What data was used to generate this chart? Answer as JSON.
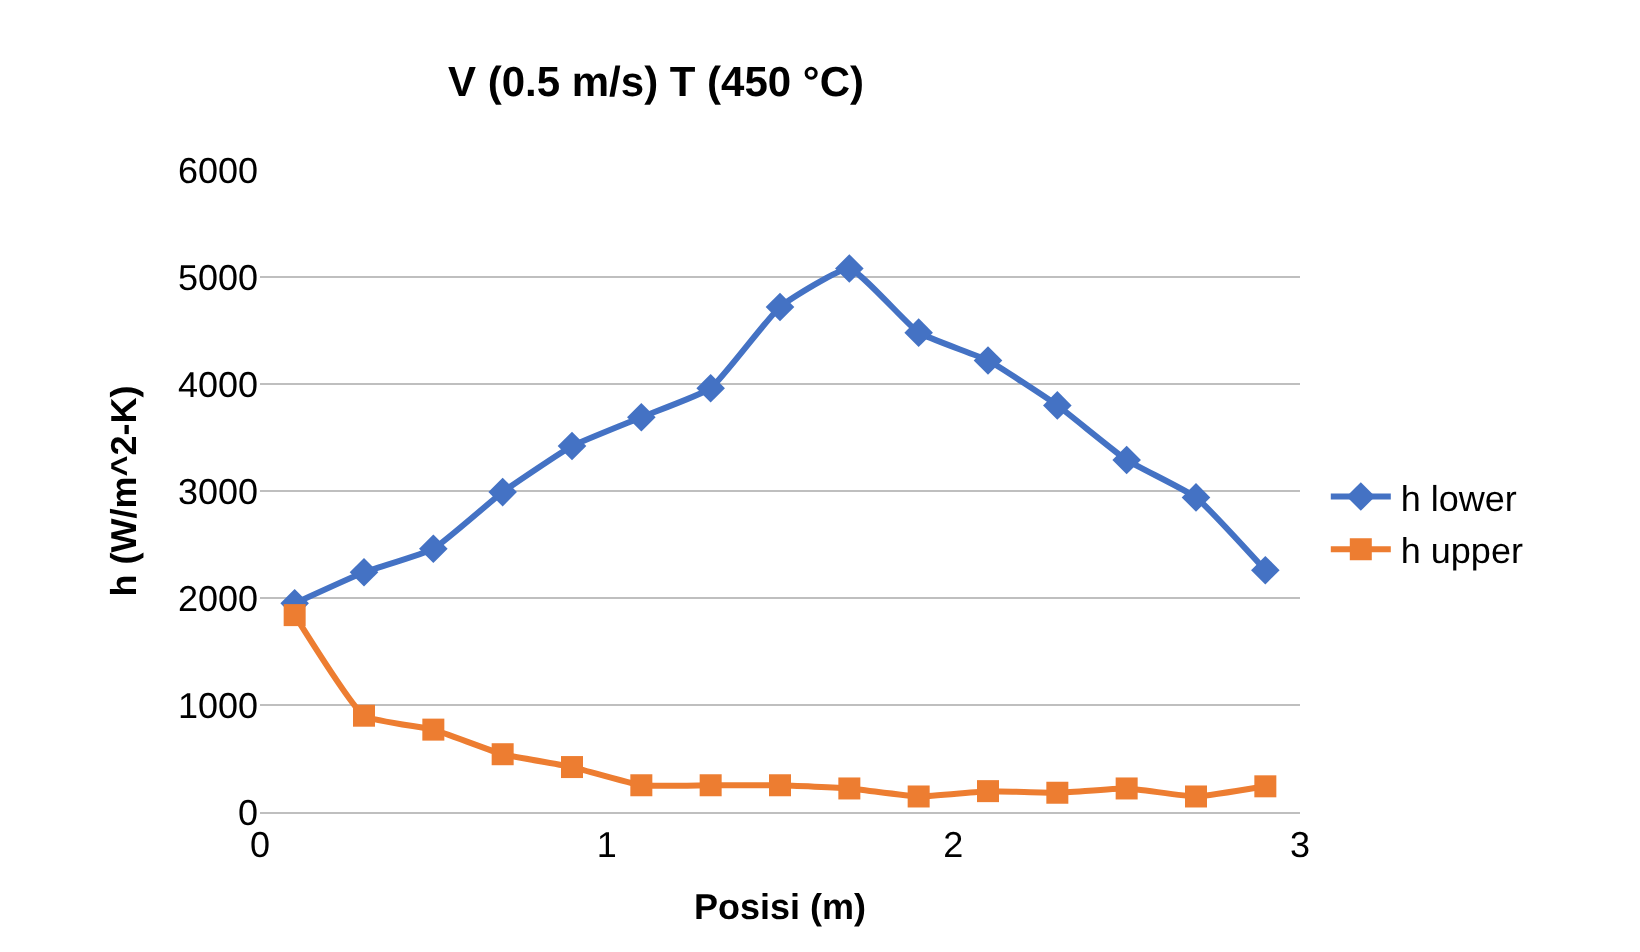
{
  "chart_data": {
    "type": "line",
    "title": "V (0.5 m/s) T (450 °C)",
    "xlabel": "Posisi (m)",
    "ylabel": "h (W/m^2-K)",
    "x": [
      0.1,
      0.3,
      0.5,
      0.7,
      0.9,
      1.1,
      1.3,
      1.5,
      1.7,
      1.9,
      2.1,
      2.3,
      2.5,
      2.7,
      2.9
    ],
    "series": [
      {
        "name": "h lower",
        "color": "#4472c4",
        "marker": "diamond",
        "values": [
          1950,
          2240,
          2460,
          2990,
          3420,
          3690,
          3960,
          4720,
          5080,
          4480,
          4220,
          3800,
          3290,
          2940,
          2260
        ]
      },
      {
        "name": "h upper",
        "color": "#ed7d31",
        "marker": "square",
        "values": [
          1840,
          900,
          770,
          540,
          420,
          250,
          250,
          250,
          220,
          145,
          195,
          180,
          220,
          145,
          240
        ]
      }
    ],
    "xlim": [
      0,
      3
    ],
    "xticks": [
      0,
      1,
      2,
      3
    ],
    "ylim": [
      0,
      6000
    ],
    "yticks": [
      0,
      1000,
      2000,
      3000,
      4000,
      5000,
      6000
    ],
    "grid": "y",
    "legend": "right",
    "line_style": "solid"
  }
}
